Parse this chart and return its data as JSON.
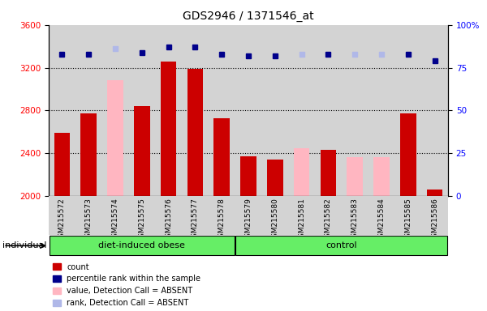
{
  "title": "GDS2946 / 1371546_at",
  "samples": [
    "GSM215572",
    "GSM215573",
    "GSM215574",
    "GSM215575",
    "GSM215576",
    "GSM215577",
    "GSM215578",
    "GSM215579",
    "GSM215580",
    "GSM215581",
    "GSM215582",
    "GSM215583",
    "GSM215584",
    "GSM215585",
    "GSM215586"
  ],
  "bar_values": [
    2590,
    2770,
    null,
    2840,
    3260,
    3190,
    2730,
    2370,
    2340,
    null,
    2430,
    null,
    null,
    2770,
    2060
  ],
  "absent_values": [
    null,
    null,
    3080,
    null,
    null,
    null,
    null,
    null,
    null,
    2450,
    null,
    2360,
    2360,
    null,
    null
  ],
  "rank_values": [
    83,
    83,
    null,
    84,
    87,
    87,
    83,
    82,
    82,
    null,
    83,
    null,
    null,
    83,
    79
  ],
  "absent_ranks": [
    null,
    null,
    86,
    null,
    null,
    null,
    null,
    null,
    null,
    83,
    null,
    83,
    83,
    null,
    null
  ],
  "ylim_left": [
    2000,
    3600
  ],
  "ylim_right": [
    0,
    100
  ],
  "yticks_left": [
    2000,
    2400,
    2800,
    3200,
    3600
  ],
  "yticks_right": [
    0,
    25,
    50,
    75,
    100
  ],
  "bar_color": "#cc0000",
  "absent_bar_color": "#ffb6c1",
  "rank_color": "#00008b",
  "absent_rank_color": "#b0b8e8",
  "bg_color": "#d3d3d3",
  "group_color": "#66ee66",
  "groups": [
    {
      "name": "diet-induced obese",
      "start": 0,
      "end": 6
    },
    {
      "name": "control",
      "start": 7,
      "end": 14
    }
  ],
  "legend_items": [
    {
      "label": "count",
      "color": "#cc0000"
    },
    {
      "label": "percentile rank within the sample",
      "color": "#00008b"
    },
    {
      "label": "value, Detection Call = ABSENT",
      "color": "#ffb6c1"
    },
    {
      "label": "rank, Detection Call = ABSENT",
      "color": "#b0b8e8"
    }
  ]
}
